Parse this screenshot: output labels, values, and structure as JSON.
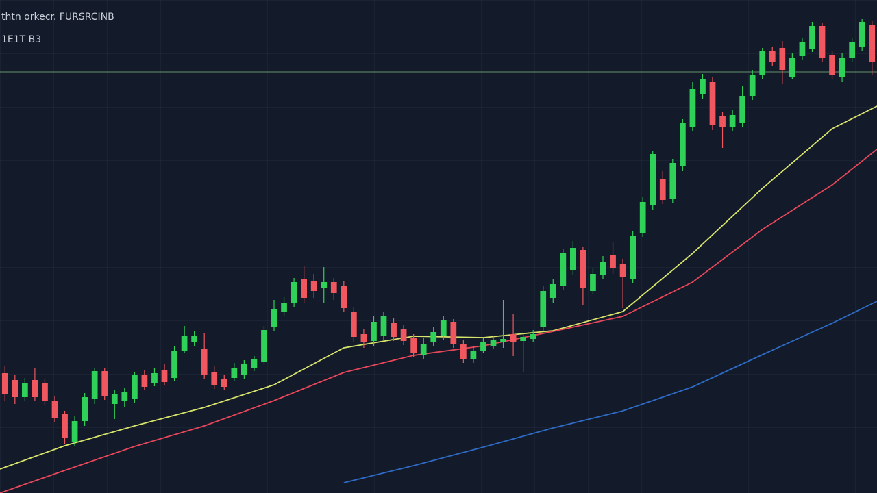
{
  "chart_data": {
    "type": "candlestick",
    "title": "thtn orkecr. FURSRCINB",
    "subtitle": "1E1T B3",
    "ylim": [
      0,
      720
    ],
    "xlim": [
      -0.5,
      87.5
    ],
    "up_color": "#2fd158",
    "down_color": "#f0575e",
    "level": 615,
    "level_color": "#4a6a55",
    "open": [
      175,
      165,
      140,
      165,
      160,
      135,
      115,
      75,
      105,
      138,
      178,
      130,
      135,
      138,
      172,
      160,
      180,
      168,
      208,
      220,
      210,
      177,
      167,
      168,
      172,
      182,
      192,
      242,
      265,
      278,
      312,
      310,
      300,
      308,
      302,
      265,
      232,
      222,
      230,
      248,
      240,
      226,
      202,
      220,
      230,
      250,
      218,
      195,
      208,
      215,
      220,
      232,
      222,
      225,
      242,
      285,
      302,
      325,
      355,
      295,
      318,
      348,
      335,
      312,
      380,
      420,
      458,
      430,
      478,
      535,
      582,
      600,
      550,
      534,
      540,
      580,
      610,
      645,
      650,
      608,
      638,
      648,
      682,
      640,
      608,
      635,
      652,
      684
    ],
    "high": [
      185,
      172,
      168,
      182,
      166,
      142,
      120,
      112,
      146,
      182,
      182,
      150,
      154,
      176,
      180,
      182,
      188,
      214,
      244,
      236,
      234,
      186,
      172,
      190,
      194,
      200,
      244,
      282,
      286,
      314,
      332,
      320,
      330,
      314,
      310,
      272,
      240,
      258,
      264,
      256,
      246,
      232,
      226,
      242,
      258,
      254,
      224,
      214,
      226,
      230,
      282,
      262,
      234,
      238,
      302,
      312,
      356,
      368,
      360,
      328,
      346,
      366,
      342,
      382,
      432,
      500,
      470,
      488,
      546,
      600,
      612,
      608,
      556,
      560,
      594,
      618,
      650,
      652,
      660,
      642,
      664,
      688,
      686,
      646,
      642,
      664,
      692,
      690
    ],
    "low": [
      135,
      130,
      134,
      134,
      128,
      104,
      72,
      68,
      98,
      130,
      136,
      108,
      126,
      132,
      150,
      156,
      158,
      164,
      204,
      214,
      166,
      152,
      150,
      164,
      166,
      178,
      188,
      236,
      258,
      272,
      278,
      285,
      278,
      282,
      264,
      220,
      212,
      214,
      224,
      222,
      216,
      198,
      196,
      214,
      224,
      212,
      190,
      190,
      204,
      210,
      212,
      200,
      176,
      220,
      236,
      278,
      296,
      318,
      274,
      290,
      312,
      320,
      270,
      306,
      374,
      414,
      422,
      424,
      470,
      528,
      576,
      530,
      504,
      528,
      534,
      574,
      604,
      624,
      598,
      604,
      632,
      644,
      630,
      604,
      600,
      630,
      646,
      610
    ],
    "close": [
      145,
      140,
      160,
      140,
      135,
      110,
      80,
      105,
      140,
      178,
      142,
      145,
      148,
      172,
      155,
      175,
      162,
      208,
      230,
      230,
      172,
      158,
      155,
      182,
      188,
      195,
      238,
      268,
      278,
      308,
      285,
      295,
      308,
      292,
      270,
      228,
      220,
      250,
      258,
      228,
      222,
      204,
      218,
      235,
      252,
      218,
      195,
      208,
      220,
      224,
      225,
      220,
      228,
      232,
      295,
      305,
      350,
      358,
      300,
      320,
      338,
      328,
      315,
      375,
      425,
      495,
      428,
      482,
      540,
      590,
      605,
      538,
      535,
      552,
      580,
      610,
      645,
      630,
      618,
      635,
      658,
      682,
      635,
      610,
      635,
      658,
      688,
      630
    ],
    "series": [
      {
        "color": "#d8e46a",
        "x": [
          -0.5,
          6,
          13,
          20,
          27,
          34,
          41,
          48,
          55,
          62,
          69,
          76,
          83,
          87.5
        ],
        "values": [
          35,
          69,
          98,
          125,
          158,
          212,
          229,
          227,
          237,
          265,
          350,
          445,
          532,
          565
        ]
      },
      {
        "color": "#e8475a",
        "x": [
          -0.5,
          6,
          13,
          20,
          27,
          34,
          41,
          48,
          55,
          62,
          69,
          76,
          83,
          87.5
        ],
        "values": [
          0,
          33,
          68,
          98,
          135,
          176,
          201,
          215,
          236,
          258,
          308,
          385,
          450,
          502
        ]
      },
      {
        "color": "#2d6bc4",
        "x": [
          -0.5,
          6,
          13,
          20,
          27,
          34,
          41,
          48,
          55,
          62,
          69,
          76,
          83,
          87.5
        ],
        "values": [
          null,
          null,
          null,
          null,
          null,
          15,
          40,
          67,
          95,
          120,
          155,
          202,
          248,
          280
        ]
      }
    ]
  }
}
